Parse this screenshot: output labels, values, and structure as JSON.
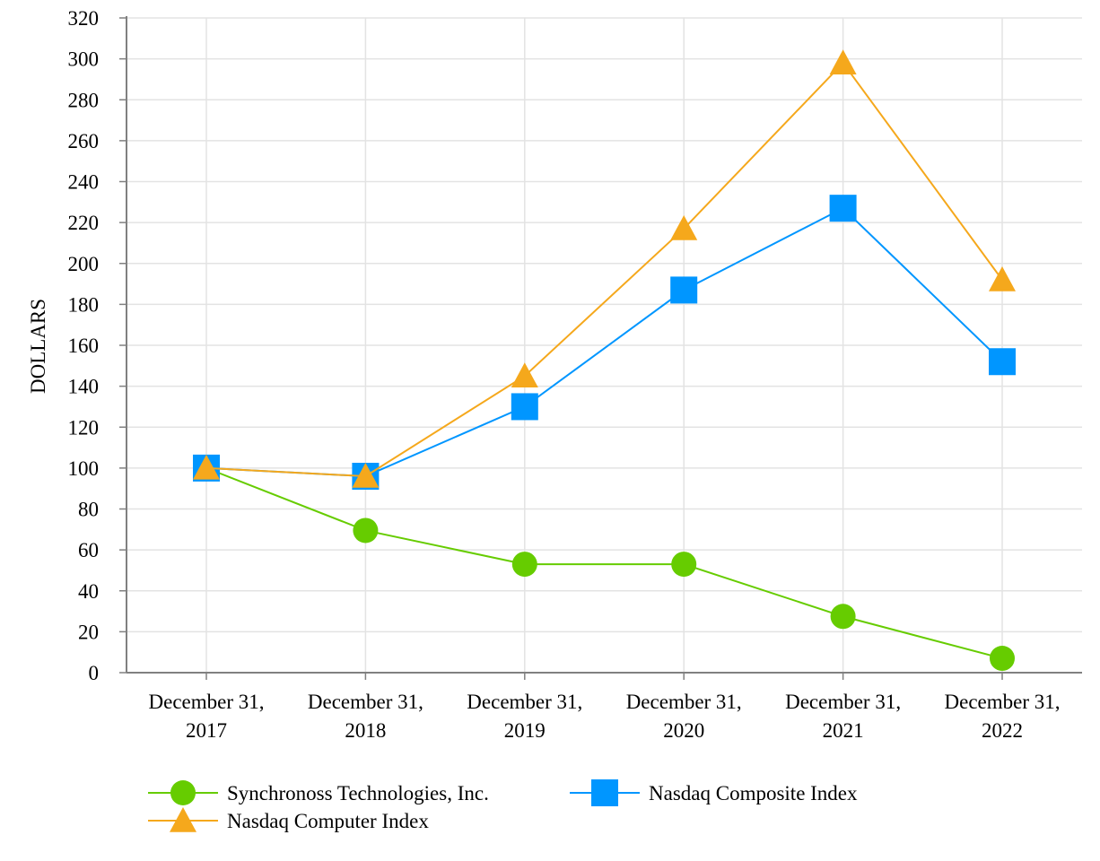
{
  "chart_data": {
    "type": "line",
    "title": "",
    "xlabel": "",
    "ylabel": "DOLLARS",
    "ylim": [
      0,
      320
    ],
    "ytick_step": 20,
    "grid": true,
    "legend_position": "bottom",
    "categories": [
      [
        "December 31,",
        "2017"
      ],
      [
        "December 31,",
        "2018"
      ],
      [
        "December 31,",
        "2019"
      ],
      [
        "December 31,",
        "2020"
      ],
      [
        "December 31,",
        "2021"
      ],
      [
        "December 31,",
        "2022"
      ]
    ],
    "series": [
      {
        "name": "Synchronoss Technologies, Inc.",
        "color": "#66cc00",
        "marker": "circle",
        "values": [
          100,
          69.5,
          53,
          53,
          27.5,
          7
        ]
      },
      {
        "name": "Nasdaq Composite Index",
        "color": "#0096ff",
        "marker": "square",
        "values": [
          100,
          96,
          130,
          187,
          227,
          152
        ]
      },
      {
        "name": "Nasdaq Computer Index",
        "color": "#f5a81c",
        "marker": "triangle",
        "values": [
          100,
          96,
          145,
          217,
          298,
          192
        ]
      }
    ]
  }
}
